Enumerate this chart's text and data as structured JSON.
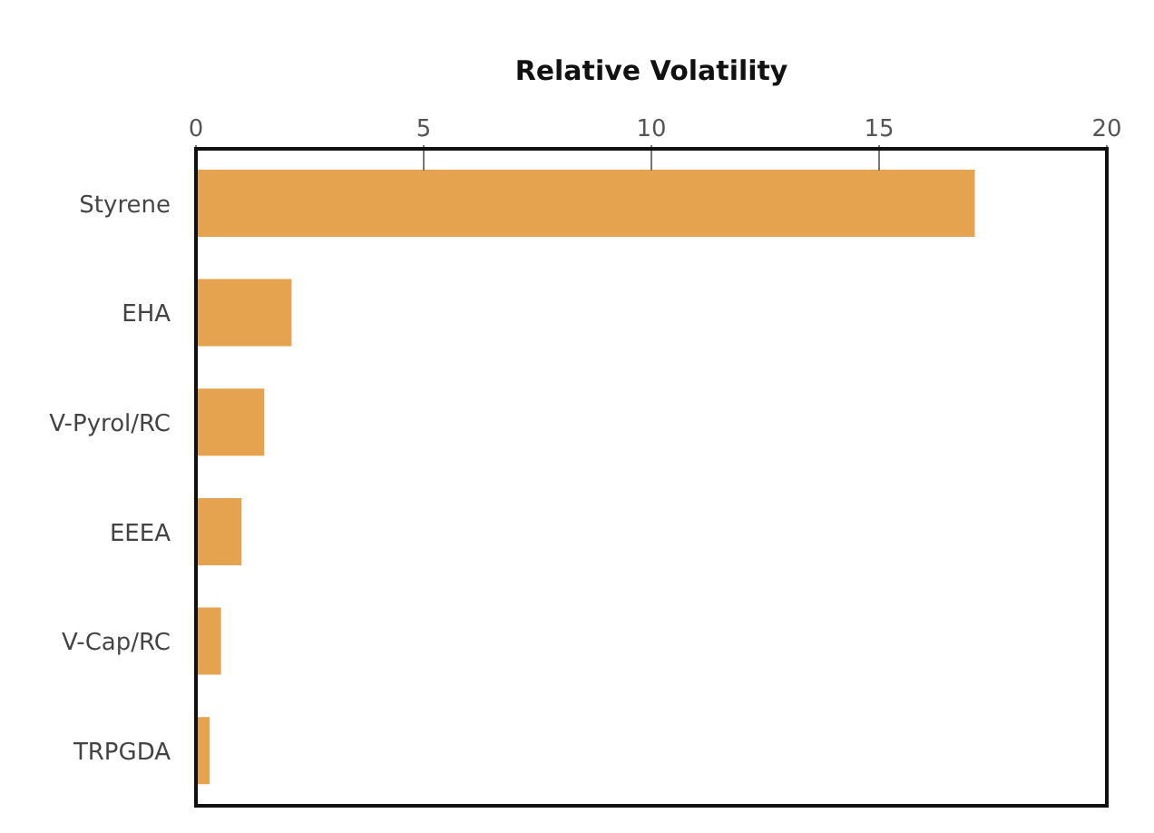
{
  "chart_data": {
    "type": "bar",
    "orientation": "horizontal",
    "title": "Relative Volatility",
    "categories": [
      "Styrene",
      "EHA",
      "V-Pyrol/RC",
      "EEEA",
      "V-Cap/RC",
      "TRPGDA"
    ],
    "values": [
      17.1,
      2.1,
      1.5,
      1.0,
      0.55,
      0.3
    ],
    "color": "#e5a24f",
    "xlim": [
      0,
      20
    ],
    "xticks": [
      0,
      5,
      10,
      15,
      20
    ]
  }
}
